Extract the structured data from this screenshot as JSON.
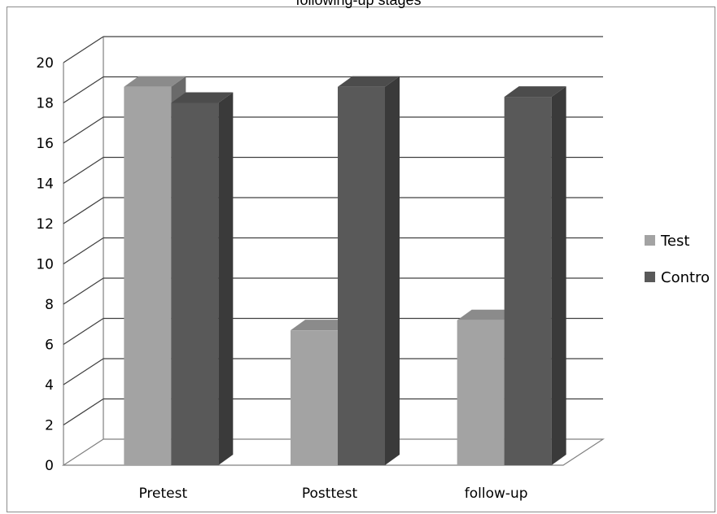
{
  "chart_data": {
    "type": "bar",
    "title": "following-up stages",
    "categories": [
      "Pretest",
      "Posttest",
      "follow-up"
    ],
    "series": [
      {
        "name": "Test",
        "values": [
          18.8,
          6.7,
          7.2
        ],
        "color": "#a3a3a3"
      },
      {
        "name": "Contro",
        "values": [
          18.0,
          18.8,
          18.3
        ],
        "color": "#595959"
      }
    ],
    "ylim": [
      0,
      20
    ],
    "yticks": [
      "0",
      "2",
      "4",
      "6",
      "8",
      "10",
      "12",
      "14",
      "16",
      "18",
      "20"
    ],
    "grid": true,
    "legend_position": "right",
    "style": "3d"
  }
}
